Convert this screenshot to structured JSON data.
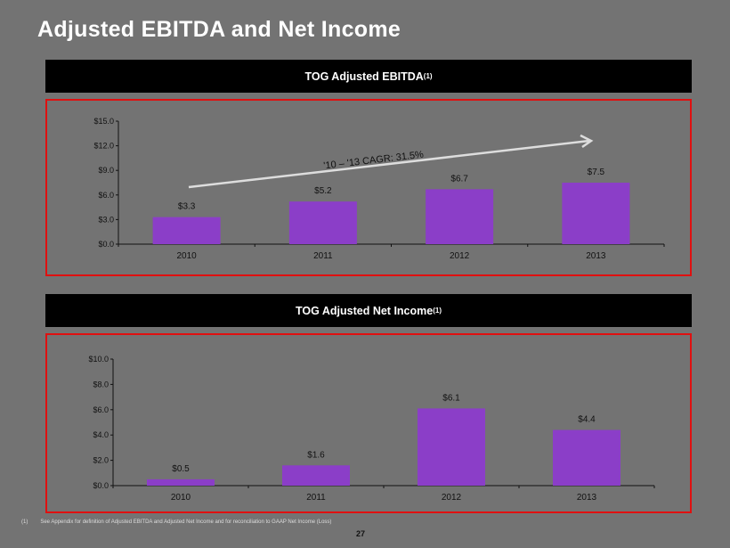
{
  "title": "Adjusted EBITDA and Net Income",
  "footnote": {
    "marker": "(1)",
    "text": "See Appendix for definition of Adjusted EBITDA and Adjusted Net Income and for reconciliation to GAAP Net Income (Loss)"
  },
  "page_number": "27",
  "colors": {
    "bar": "#8B3EC8",
    "frame": "#E01010",
    "background": "#737373"
  },
  "chart_data": [
    {
      "type": "bar",
      "title": "TOG Adjusted EBITDA",
      "title_sup": "(1)",
      "categories": [
        "2010",
        "2011",
        "2012",
        "2013"
      ],
      "values": [
        3.3,
        5.2,
        6.7,
        7.5
      ],
      "labels": [
        "$3.3",
        "$5.2",
        "$6.7",
        "$7.5"
      ],
      "ylim": [
        0,
        15
      ],
      "yticks": [
        "$0.0",
        "$3.0",
        "$6.0",
        "$9.0",
        "$12.0",
        "$15.0"
      ],
      "annotation": "'10 – '13 CAGR: 31.5%"
    },
    {
      "type": "bar",
      "title": "TOG Adjusted Net Income",
      "title_sup": "(1)",
      "categories": [
        "2010",
        "2011",
        "2012",
        "2013"
      ],
      "values": [
        0.5,
        1.6,
        6.1,
        4.4
      ],
      "labels": [
        "$0.5",
        "$1.6",
        "$6.1",
        "$4.4"
      ],
      "ylim": [
        0,
        10
      ],
      "yticks": [
        "$0.0",
        "$2.0",
        "$4.0",
        "$6.0",
        "$8.0",
        "$10.0"
      ]
    }
  ]
}
